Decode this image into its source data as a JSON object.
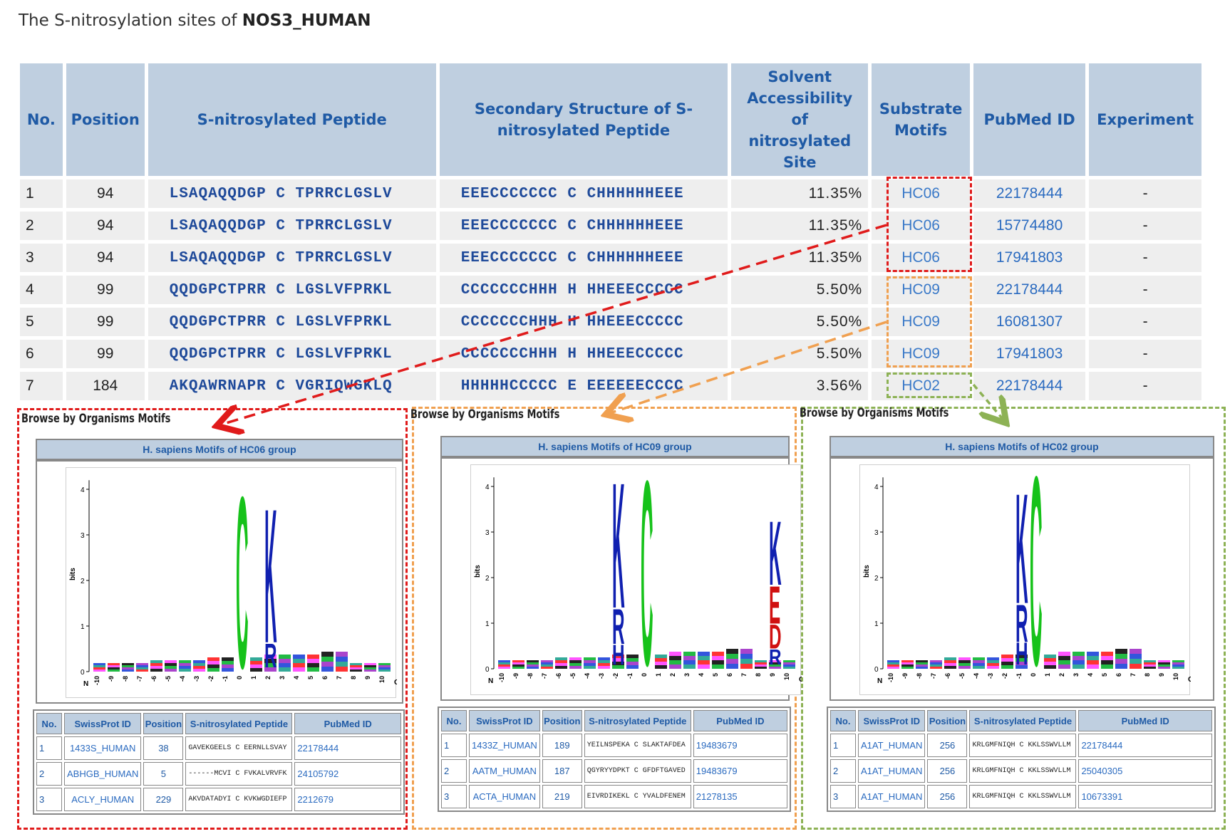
{
  "title": {
    "prefix": "The S-nitrosylation sites of ",
    "protein": "NOS3_HUMAN"
  },
  "main_table": {
    "headers": {
      "no": "No.",
      "position": "Position",
      "peptide": "S-nitrosylated Peptide",
      "secondary": "Secondary Structure of S-nitrosylated Peptide",
      "solvent": "Solvent Accessibility of nitrosylated Site",
      "motifs": "Substrate Motifs",
      "pubmed": "PubMed ID",
      "experiment": "Experiment"
    },
    "rows": [
      {
        "no": "1",
        "position": "94",
        "pep_left": "LSAQAQQDGP",
        "pep_mid": "C",
        "pep_right": "TPRRCLGSLV",
        "ss_left": "EEECCCCCCC",
        "ss_mid": "C",
        "ss_right": "CHHHHHHEEE",
        "sa": "11.35%",
        "motif": "HC06",
        "pubmed": "22178444",
        "exp": "-"
      },
      {
        "no": "2",
        "position": "94",
        "pep_left": "LSAQAQQDGP",
        "pep_mid": "C",
        "pep_right": "TPRRCLGSLV",
        "ss_left": "EEECCCCCCC",
        "ss_mid": "C",
        "ss_right": "CHHHHHHEEE",
        "sa": "11.35%",
        "motif": "HC06",
        "pubmed": "15774480",
        "exp": "-"
      },
      {
        "no": "3",
        "position": "94",
        "pep_left": "LSAQAQQDGP",
        "pep_mid": "C",
        "pep_right": "TPRRCLGSLV",
        "ss_left": "EEECCCCCCC",
        "ss_mid": "C",
        "ss_right": "CHHHHHHEEE",
        "sa": "11.35%",
        "motif": "HC06",
        "pubmed": "17941803",
        "exp": "-"
      },
      {
        "no": "4",
        "position": "99",
        "pep_left": "QQDGPCTPRR",
        "pep_mid": "C",
        "pep_right": "LGSLVFPRKL",
        "ss_left": "CCCCCCCHHH",
        "ss_mid": "H",
        "ss_right": "HHEEECCCCC",
        "sa": "5.50%",
        "motif": "HC09",
        "pubmed": "22178444",
        "exp": "-"
      },
      {
        "no": "5",
        "position": "99",
        "pep_left": "QQDGPCTPRR",
        "pep_mid": "C",
        "pep_right": "LGSLVFPRKL",
        "ss_left": "CCCCCCCHHH",
        "ss_mid": "H",
        "ss_right": "HHEEECCCCC",
        "sa": "5.50%",
        "motif": "HC09",
        "pubmed": "16081307",
        "exp": "-"
      },
      {
        "no": "6",
        "position": "99",
        "pep_left": "QQDGPCTPRR",
        "pep_mid": "C",
        "pep_right": "LGSLVFPRKL",
        "ss_left": "CCCCCCCHHH",
        "ss_mid": "H",
        "ss_right": "HHEEECCCCC",
        "sa": "5.50%",
        "motif": "HC09",
        "pubmed": "17941803",
        "exp": "-"
      },
      {
        "no": "7",
        "position": "184",
        "pep_left": "AKQAWRNAPR",
        "pep_mid": "C",
        "pep_right": "VGRIQWGKLQ",
        "ss_left": "HHHHHCCCCC",
        "ss_mid": "E",
        "ss_right": "EEEEEECCCC",
        "sa": "3.56%",
        "motif": "HC02",
        "pubmed": "22178444",
        "exp": "-"
      }
    ]
  },
  "panels": [
    {
      "heading": "Browse by Organisms Motifs",
      "group_title": "H. sapiens Motifs of HC06 group",
      "logo_big": [
        "C",
        "K",
        "R"
      ],
      "headers": [
        "No.",
        "SwissProt ID",
        "Position",
        "S-nitrosylated Peptide",
        "PubMed ID"
      ],
      "rows": [
        {
          "no": "1",
          "id": "1433S_HUMAN",
          "pos": "38",
          "pep": "GAVEKGEELS C EERNLLSVAY",
          "pm": "22178444"
        },
        {
          "no": "2",
          "id": "ABHGB_HUMAN",
          "pos": "5",
          "pep": "------MCVI C FVKALVRVFK",
          "pm": "24105792"
        },
        {
          "no": "3",
          "id": "ACLY_HUMAN",
          "pos": "229",
          "pep": "AKVDATADYI C KVKWGDIEFP",
          "pm": "2212679"
        }
      ]
    },
    {
      "heading": "Browse by Organisms Motifs",
      "group_title": "H. sapiens Motifs of HC09 group",
      "logo_big": [
        "K",
        "R",
        "H",
        "C",
        "K",
        "E",
        "D",
        "R"
      ],
      "headers": [
        "No.",
        "SwissProt ID",
        "Position",
        "S-nitrosylated Peptide",
        "PubMed ID"
      ],
      "rows": [
        {
          "no": "1",
          "id": "1433Z_HUMAN",
          "pos": "189",
          "pep": "YEILNSPEKA C SLAKTAFDEA",
          "pm": "19483679"
        },
        {
          "no": "2",
          "id": "AATM_HUMAN",
          "pos": "187",
          "pep": "QGYRYYDPKT C GFDFTGAVED",
          "pm": "19483679"
        },
        {
          "no": "3",
          "id": "ACTA_HUMAN",
          "pos": "219",
          "pep": "EIVRDIKEKL C YVALDFENEM",
          "pm": "21278135"
        }
      ]
    },
    {
      "heading": "Browse by Organisms Motifs",
      "group_title": "H. sapiens Motifs of HC02 group",
      "logo_big": [
        "K",
        "R",
        "H",
        "C"
      ],
      "headers": [
        "No.",
        "SwissProt ID",
        "Position",
        "S-nitrosylated Peptide",
        "PubMed ID"
      ],
      "rows": [
        {
          "no": "1",
          "id": "A1AT_HUMAN",
          "pos": "256",
          "pep": "KRLGMFNIQH C KKLSSWVLLM",
          "pm": "22178444"
        },
        {
          "no": "2",
          "id": "A1AT_HUMAN",
          "pos": "256",
          "pep": "KRLGMFNIQH C KKLSSWVLLM",
          "pm": "25040305"
        },
        {
          "no": "3",
          "id": "A1AT_HUMAN",
          "pos": "256",
          "pep": "KRLGMFNIQH C KKLSSWVLLM",
          "pm": "10673391"
        }
      ]
    }
  ],
  "logo_axis": {
    "y_label": "bits",
    "y_ticks": [
      "0",
      "1",
      "2",
      "3",
      "4"
    ],
    "x_ticks": [
      "-10",
      "-9",
      "-8",
      "-7",
      "-6",
      "-5",
      "-4",
      "-3",
      "-2",
      "-1",
      "0",
      "1",
      "2",
      "3",
      "4",
      "5",
      "6",
      "7",
      "8",
      "9",
      "10"
    ],
    "n_label": "N",
    "c_label": "C"
  },
  "colors": {
    "hc06": "#e01b1b",
    "hc09": "#f0a050",
    "hc02": "#8db255",
    "cys_green": "#16c21a",
    "basic_blue": "#1020b0",
    "acidic_red": "#d01010"
  }
}
